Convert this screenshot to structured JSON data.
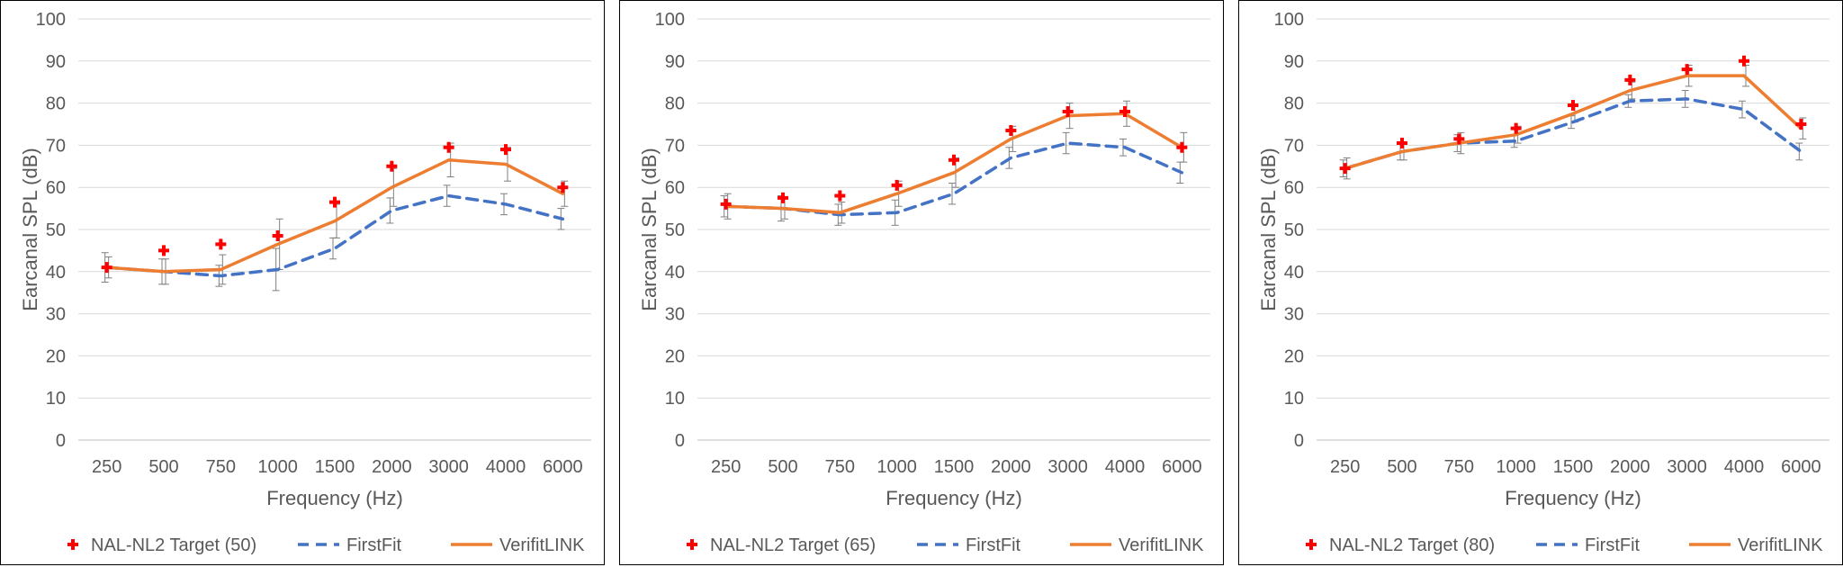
{
  "charts": [
    {
      "type": "line",
      "xlabel": "Frequency (Hz)",
      "ylabel": "Earcanal SPL (dB)",
      "ylim": [
        0,
        100
      ],
      "yticks": [
        0,
        10,
        20,
        30,
        40,
        50,
        60,
        70,
        80,
        90,
        100
      ],
      "categories": [
        "250",
        "500",
        "750",
        "1000",
        "1500",
        "2000",
        "3000",
        "4000",
        "6000"
      ],
      "legend": "bottom",
      "grid": true,
      "series": [
        {
          "name": "NAL-NL2 Target (50)",
          "style": "marker-plus",
          "color": "#ff0000",
          "values": [
            41,
            45,
            46.5,
            48.5,
            56.5,
            65,
            69.5,
            69,
            60
          ]
        },
        {
          "name": "FirstFit",
          "style": "dashed",
          "color": "#4472c4",
          "values": [
            41,
            40,
            39,
            40.5,
            45.5,
            54.5,
            58,
            56,
            52.5
          ],
          "err": [
            3.5,
            3,
            2.5,
            5,
            2.5,
            3,
            2.5,
            2.5,
            2.5
          ]
        },
        {
          "name": "VerifitLINK",
          "style": "solid",
          "color": "#ed7d31",
          "values": [
            41,
            40,
            40.5,
            46.5,
            52,
            60,
            66.5,
            65.5,
            58.5
          ],
          "err": [
            2.5,
            3,
            3.5,
            6,
            4,
            4.5,
            4,
            4,
            3
          ]
        }
      ]
    },
    {
      "type": "line",
      "xlabel": "Frequency (Hz)",
      "ylabel": "Earcanal SPL (dB)",
      "ylim": [
        0,
        100
      ],
      "yticks": [
        0,
        10,
        20,
        30,
        40,
        50,
        60,
        70,
        80,
        90,
        100
      ],
      "categories": [
        "250",
        "500",
        "750",
        "1000",
        "1500",
        "2000",
        "3000",
        "4000",
        "6000"
      ],
      "legend": "bottom",
      "grid": true,
      "series": [
        {
          "name": "NAL-NL2 Target (65)",
          "style": "marker-plus",
          "color": "#ff0000",
          "values": [
            56,
            57.5,
            58,
            60.5,
            66.5,
            73.5,
            78,
            78,
            69.5
          ]
        },
        {
          "name": "FirstFit",
          "style": "dashed",
          "color": "#4472c4",
          "values": [
            55.5,
            55,
            53.5,
            54,
            58.5,
            67,
            70.5,
            69.5,
            63.5
          ],
          "err": [
            2.5,
            3,
            2.5,
            3,
            2.5,
            2.5,
            2.5,
            2,
            2.5
          ]
        },
        {
          "name": "VerifitLINK",
          "style": "solid",
          "color": "#ed7d31",
          "values": [
            55.5,
            55,
            54,
            58.5,
            63.5,
            71.5,
            77,
            77.5,
            69.5
          ],
          "err": [
            3,
            2.5,
            2.5,
            3,
            3.5,
            3,
            3,
            3,
            3.5
          ]
        }
      ]
    },
    {
      "type": "line",
      "xlabel": "Frequency (Hz)",
      "ylabel": "Earcanal SPL (dB)",
      "ylim": [
        0,
        100
      ],
      "yticks": [
        0,
        10,
        20,
        30,
        40,
        50,
        60,
        70,
        80,
        90,
        100
      ],
      "categories": [
        "250",
        "500",
        "750",
        "1000",
        "1500",
        "2000",
        "3000",
        "4000",
        "6000"
      ],
      "legend": "bottom",
      "grid": true,
      "series": [
        {
          "name": "NAL-NL2 Target (80)",
          "style": "marker-plus",
          "color": "#ff0000",
          "values": [
            64.5,
            70.5,
            71.5,
            74,
            79.5,
            85.5,
            88,
            90,
            75
          ]
        },
        {
          "name": "FirstFit",
          "style": "dashed",
          "color": "#4472c4",
          "values": [
            64.5,
            68.5,
            70.5,
            71,
            75.5,
            80.5,
            81,
            78.5,
            68.5
          ],
          "err": [
            2,
            2,
            2,
            1.5,
            1.5,
            1.5,
            2,
            2,
            2
          ]
        },
        {
          "name": "VerifitLINK",
          "style": "solid",
          "color": "#ed7d31",
          "values": [
            64.5,
            68.5,
            70.5,
            72.5,
            77.5,
            83,
            86.5,
            86.5,
            74
          ],
          "err": [
            2.5,
            2,
            2.5,
            2,
            2,
            2,
            2.5,
            2.5,
            2.5
          ]
        }
      ]
    }
  ]
}
